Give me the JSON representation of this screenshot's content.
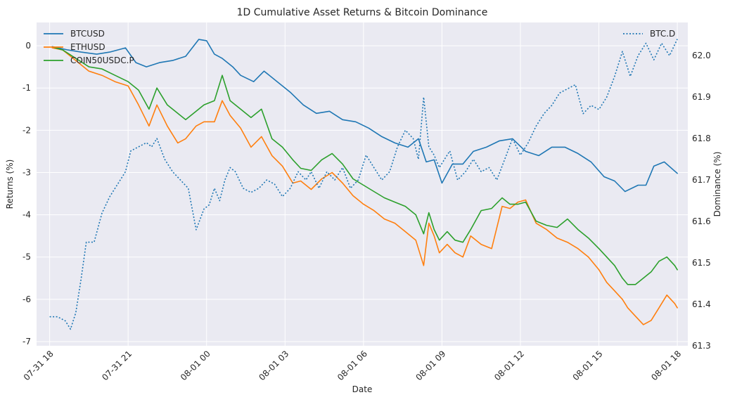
{
  "chart_data": {
    "type": "line",
    "title": "1D Cumulative Asset Returns & Bitcoin Dominance",
    "xlabel": "Date",
    "ylabel": "Returns (%)",
    "y2label": "Dominance (%)",
    "grid": true,
    "xlim_hours": [
      -0.5,
      24.4
    ],
    "ylim": [
      -7.1,
      0.55
    ],
    "y2lim": [
      61.3,
      62.08
    ],
    "x_ticks": [
      {
        "h": 0,
        "label": "07-31 18"
      },
      {
        "h": 3,
        "label": "07-31 21"
      },
      {
        "h": 6,
        "label": "08-01 00"
      },
      {
        "h": 9,
        "label": "08-01 03"
      },
      {
        "h": 12,
        "label": "08-01 06"
      },
      {
        "h": 15,
        "label": "08-01 09"
      },
      {
        "h": 18,
        "label": "08-01 12"
      },
      {
        "h": 21,
        "label": "08-01 15"
      },
      {
        "h": 24,
        "label": "08-01 18"
      }
    ],
    "y_ticks": [
      0,
      -1,
      -2,
      -3,
      -4,
      -5,
      -6,
      -7
    ],
    "y2_ticks": [
      62.0,
      61.9,
      61.8,
      61.7,
      61.6,
      61.5,
      61.4,
      61.3
    ],
    "legend_left": [
      "BTCUSD",
      "ETHUSD",
      "COIN50USDC.P"
    ],
    "legend_right": [
      "BTC.D"
    ],
    "series": [
      {
        "name": "BTCUSD",
        "axis": "left",
        "color": "#1f77b4",
        "style": "solid",
        "x": [
          0.1,
          0.7,
          1.2,
          1.8,
          2.3,
          2.9,
          3.3,
          3.7,
          4.2,
          4.7,
          5.2,
          5.7,
          6.0,
          6.3,
          6.6,
          7.0,
          7.3,
          7.8,
          8.2,
          8.7,
          9.2,
          9.7,
          10.2,
          10.7,
          11.2,
          11.7,
          12.2,
          12.7,
          13.2,
          13.7,
          14.1,
          14.4,
          14.7,
          15.0,
          15.4,
          15.8,
          16.2,
          16.7,
          17.2,
          17.7,
          18.2,
          18.7,
          19.2,
          19.7,
          20.2,
          20.7,
          21.2,
          21.6,
          22.0,
          22.5,
          22.8,
          23.1,
          23.5,
          24.0
        ],
        "y": [
          -0.02,
          -0.1,
          -0.15,
          -0.2,
          -0.15,
          -0.05,
          -0.4,
          -0.5,
          -0.4,
          -0.35,
          -0.25,
          0.15,
          0.12,
          -0.2,
          -0.3,
          -0.5,
          -0.7,
          -0.85,
          -0.6,
          -0.85,
          -1.1,
          -1.4,
          -1.6,
          -1.55,
          -1.75,
          -1.8,
          -1.95,
          -2.15,
          -2.3,
          -2.4,
          -2.2,
          -2.75,
          -2.7,
          -3.25,
          -2.8,
          -2.8,
          -2.5,
          -2.4,
          -2.25,
          -2.2,
          -2.5,
          -2.6,
          -2.4,
          -2.4,
          -2.55,
          -2.75,
          -3.1,
          -3.2,
          -3.45,
          -3.3,
          -3.3,
          -2.85,
          -2.75,
          -3.02
        ]
      },
      {
        "name": "ETHUSD",
        "axis": "left",
        "color": "#ff7f0e",
        "style": "solid",
        "x": [
          0.1,
          0.5,
          1.0,
          1.5,
          2.0,
          2.5,
          3.0,
          3.4,
          3.8,
          4.1,
          4.5,
          4.9,
          5.2,
          5.6,
          5.9,
          6.3,
          6.6,
          6.9,
          7.3,
          7.7,
          8.1,
          8.5,
          8.9,
          9.3,
          9.6,
          10.0,
          10.4,
          10.8,
          11.2,
          11.6,
          12.0,
          12.4,
          12.8,
          13.2,
          13.6,
          14.0,
          14.3,
          14.5,
          14.7,
          14.9,
          15.2,
          15.5,
          15.8,
          16.1,
          16.5,
          16.9,
          17.3,
          17.6,
          17.9,
          18.2,
          18.6,
          19.0,
          19.4,
          19.8,
          20.2,
          20.6,
          21.0,
          21.3,
          21.6,
          21.9,
          22.1,
          22.4,
          22.7,
          23.0,
          23.3,
          23.6,
          23.9,
          24.0
        ],
        "y": [
          -0.05,
          -0.1,
          -0.35,
          -0.6,
          -0.7,
          -0.85,
          -0.95,
          -1.4,
          -1.9,
          -1.4,
          -1.9,
          -2.3,
          -2.2,
          -1.9,
          -1.8,
          -1.8,
          -1.3,
          -1.65,
          -1.95,
          -2.4,
          -2.15,
          -2.6,
          -2.85,
          -3.25,
          -3.2,
          -3.4,
          -3.15,
          -3.0,
          -3.25,
          -3.55,
          -3.75,
          -3.9,
          -4.1,
          -4.2,
          -4.4,
          -4.6,
          -5.2,
          -4.2,
          -4.5,
          -4.9,
          -4.7,
          -4.9,
          -5.0,
          -4.5,
          -4.7,
          -4.8,
          -3.8,
          -3.85,
          -3.7,
          -3.65,
          -4.2,
          -4.35,
          -4.55,
          -4.65,
          -4.8,
          -5.0,
          -5.3,
          -5.6,
          -5.8,
          -6.0,
          -6.2,
          -6.4,
          -6.6,
          -6.5,
          -6.2,
          -5.9,
          -6.1,
          -6.2
        ]
      },
      {
        "name": "COIN50USDC.P",
        "axis": "left",
        "color": "#2ca02c",
        "style": "solid",
        "x": [
          0.1,
          0.5,
          1.0,
          1.5,
          2.0,
          2.5,
          3.0,
          3.4,
          3.8,
          4.1,
          4.5,
          4.9,
          5.2,
          5.6,
          5.9,
          6.3,
          6.6,
          6.9,
          7.3,
          7.7,
          8.1,
          8.5,
          8.9,
          9.3,
          9.6,
          10.0,
          10.4,
          10.8,
          11.2,
          11.6,
          12.0,
          12.4,
          12.8,
          13.2,
          13.6,
          14.0,
          14.3,
          14.5,
          14.7,
          14.9,
          15.2,
          15.5,
          15.8,
          16.1,
          16.5,
          16.9,
          17.3,
          17.6,
          17.9,
          18.2,
          18.6,
          19.0,
          19.4,
          19.8,
          20.2,
          20.6,
          21.0,
          21.3,
          21.6,
          21.9,
          22.1,
          22.4,
          22.7,
          23.0,
          23.3,
          23.6,
          23.9,
          24.0
        ],
        "y": [
          -0.03,
          -0.1,
          -0.3,
          -0.5,
          -0.55,
          -0.7,
          -0.85,
          -1.05,
          -1.5,
          -1.0,
          -1.4,
          -1.6,
          -1.75,
          -1.55,
          -1.4,
          -1.3,
          -0.7,
          -1.3,
          -1.5,
          -1.7,
          -1.5,
          -2.2,
          -2.4,
          -2.7,
          -2.9,
          -2.95,
          -2.7,
          -2.55,
          -2.8,
          -3.15,
          -3.3,
          -3.45,
          -3.6,
          -3.7,
          -3.8,
          -4.0,
          -4.45,
          -3.95,
          -4.35,
          -4.6,
          -4.4,
          -4.6,
          -4.65,
          -4.35,
          -3.9,
          -3.85,
          -3.6,
          -3.75,
          -3.75,
          -3.7,
          -4.15,
          -4.25,
          -4.3,
          -4.1,
          -4.35,
          -4.55,
          -4.8,
          -5.0,
          -5.2,
          -5.5,
          -5.65,
          -5.65,
          -5.5,
          -5.35,
          -5.1,
          -5.0,
          -5.2,
          -5.3
        ]
      },
      {
        "name": "BTC.D",
        "axis": "right",
        "color": "#1f77b4",
        "style": "dotted",
        "x": [
          0.0,
          0.3,
          0.6,
          0.8,
          1.0,
          1.2,
          1.4,
          1.7,
          2.0,
          2.3,
          2.6,
          2.9,
          3.1,
          3.4,
          3.7,
          3.9,
          4.1,
          4.4,
          4.7,
          5.0,
          5.3,
          5.6,
          5.9,
          6.1,
          6.3,
          6.5,
          6.7,
          6.9,
          7.1,
          7.4,
          7.7,
          8.0,
          8.3,
          8.6,
          8.9,
          9.2,
          9.5,
          9.8,
          10.0,
          10.3,
          10.6,
          10.9,
          11.2,
          11.5,
          11.8,
          12.1,
          12.4,
          12.7,
          13.0,
          13.3,
          13.6,
          13.9,
          14.1,
          14.3,
          14.5,
          14.7,
          14.9,
          15.1,
          15.3,
          15.6,
          15.9,
          16.2,
          16.5,
          16.8,
          17.1,
          17.4,
          17.7,
          18.0,
          18.3,
          18.6,
          18.9,
          19.2,
          19.5,
          19.8,
          20.1,
          20.4,
          20.7,
          21.0,
          21.3,
          21.6,
          21.9,
          22.2,
          22.5,
          22.8,
          23.1,
          23.4,
          23.7,
          24.0
        ],
        "y": [
          61.37,
          61.37,
          61.36,
          61.34,
          61.38,
          61.46,
          61.55,
          61.55,
          61.62,
          61.66,
          61.69,
          61.72,
          61.77,
          61.78,
          61.79,
          61.78,
          61.8,
          61.75,
          61.72,
          61.7,
          61.68,
          61.58,
          61.63,
          61.64,
          61.68,
          61.65,
          61.7,
          61.73,
          61.72,
          61.68,
          61.67,
          61.68,
          61.7,
          61.69,
          61.66,
          61.68,
          61.72,
          61.7,
          61.72,
          61.68,
          61.72,
          61.7,
          61.73,
          61.68,
          61.7,
          61.76,
          61.73,
          61.7,
          61.72,
          61.78,
          61.82,
          61.8,
          61.75,
          61.9,
          61.78,
          61.76,
          61.73,
          61.75,
          61.77,
          61.7,
          61.72,
          61.75,
          61.72,
          61.73,
          61.7,
          61.75,
          61.8,
          61.76,
          61.79,
          61.83,
          61.86,
          61.88,
          61.91,
          61.92,
          61.93,
          61.86,
          61.88,
          61.87,
          61.9,
          61.95,
          62.01,
          61.95,
          62.0,
          62.03,
          61.99,
          62.03,
          62.0,
          62.04
        ]
      }
    ]
  }
}
